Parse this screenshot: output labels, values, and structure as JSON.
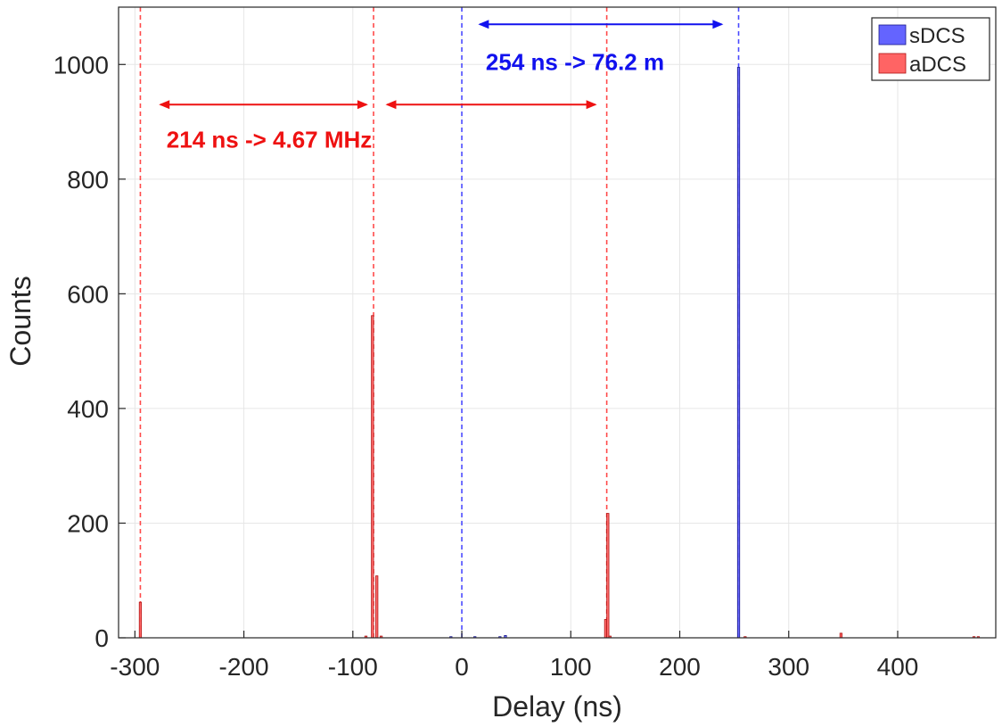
{
  "chart_data": {
    "type": "bar",
    "title": "",
    "xlabel": "Delay (ns)",
    "ylabel": "Counts",
    "xlim": [
      -315,
      490
    ],
    "ylim": [
      0,
      1100
    ],
    "xticks": [
      -300,
      -200,
      -100,
      0,
      100,
      200,
      300,
      400
    ],
    "xtick_labels": [
      "-300",
      "-200",
      "-100",
      "0",
      "100",
      "200",
      "300",
      "400"
    ],
    "yticks": [
      0,
      200,
      400,
      600,
      800,
      1000
    ],
    "ytick_labels": [
      "0",
      "200",
      "400",
      "600",
      "800",
      "1000"
    ],
    "grid": true,
    "bin_width_ns": 2,
    "legend": {
      "placement": "top-right"
    },
    "series": [
      {
        "name": "sDCS",
        "color": "#6464ff",
        "edge_color": "#1a1a8c",
        "x": [
          -10,
          12,
          35,
          40,
          254
        ],
        "values": [
          2,
          2,
          2,
          4,
          995
        ]
      },
      {
        "name": "aDCS",
        "color": "#ff6464",
        "edge_color": "#b01515",
        "x": [
          -295,
          -88,
          -82,
          -78,
          -74,
          132,
          134,
          136,
          260,
          348,
          470,
          474
        ],
        "values": [
          62,
          3,
          562,
          108,
          3,
          32,
          217,
          3,
          2,
          8,
          2,
          2
        ]
      }
    ],
    "reference_lines": [
      {
        "x": -295,
        "color": "#ff4a4a"
      },
      {
        "x": -81,
        "color": "#ff4a4a"
      },
      {
        "x": 133,
        "color": "#ff4a4a"
      },
      {
        "x": 0,
        "color": "#4a4aff"
      },
      {
        "x": 254,
        "color": "#4a4aff"
      }
    ],
    "arrows": [
      {
        "x1": -278,
        "x2": -86,
        "y": 930,
        "color": "#ee1111"
      },
      {
        "x1": -70,
        "x2": 124,
        "y": 930,
        "color": "#ee1111"
      },
      {
        "x1": 15,
        "x2": 240,
        "y": 1070,
        "color": "#1111ee"
      }
    ],
    "annotations": [
      {
        "text": "214 ns -> 4.67 MHz",
        "x": -271,
        "y": 855,
        "color": "#ee1111"
      },
      {
        "text": "254 ns -> 76.2 m",
        "x": 22,
        "y": 990,
        "color": "#1111ee"
      }
    ]
  }
}
